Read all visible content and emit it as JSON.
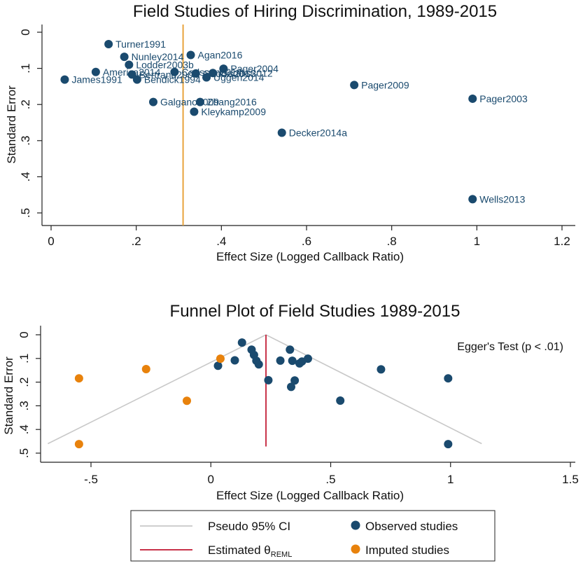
{
  "colors": {
    "observed": "#1a4a6e",
    "imputed": "#e8820c",
    "vline_top": "#e8a33c",
    "ci": "#c8c8c8",
    "estimate": "#c8334a",
    "axis": "#222222"
  },
  "chart_data": [
    {
      "type": "scatter",
      "title": "Field Studies of Hiring Discrimination, 1989-2015",
      "xlabel": "Effect Size (Logged Callback Ratio)",
      "ylabel": "Standard Error",
      "xlim": [
        0,
        1.2
      ],
      "ylim": [
        0,
        0.5
      ],
      "y_reversed": true,
      "xticks": [
        "0",
        ".2",
        ".4",
        ".6",
        ".8",
        "1",
        "1.2"
      ],
      "yticks": [
        "0",
        ".1",
        ".2",
        ".3",
        ".4",
        ".5"
      ],
      "vertical_line_x": 0.31,
      "points": [
        {
          "x": 0.135,
          "y": 0.033,
          "label": "Turner1991"
        },
        {
          "x": 0.172,
          "y": 0.068,
          "label": "Nunley2014"
        },
        {
          "x": 0.328,
          "y": 0.063,
          "label": "Agan2016"
        },
        {
          "x": 0.183,
          "y": 0.09,
          "label": "Lodder2003b"
        },
        {
          "x": 0.105,
          "y": 0.11,
          "label": "America2014"
        },
        {
          "x": 0.19,
          "y": 0.117,
          "label": "Bertrand2004"
        },
        {
          "x": 0.29,
          "y": 0.11,
          "label": "Carlsson2014"
        },
        {
          "x": 0.34,
          "y": 0.114,
          "label": "Gaddis2015"
        },
        {
          "x": 0.38,
          "y": 0.113,
          "label": "Gaddis2012"
        },
        {
          "x": 0.405,
          "y": 0.101,
          "label": "Pager2004"
        },
        {
          "x": 0.365,
          "y": 0.125,
          "label": "Uggen2014"
        },
        {
          "x": 0.032,
          "y": 0.131,
          "label": "James1991"
        },
        {
          "x": 0.202,
          "y": 0.131,
          "label": "Bendick1994"
        },
        {
          "x": 0.712,
          "y": 0.146,
          "label": "Pager2009"
        },
        {
          "x": 0.99,
          "y": 0.184,
          "label": "Pager2003"
        },
        {
          "x": 0.24,
          "y": 0.193,
          "label": "Galgano2009"
        },
        {
          "x": 0.35,
          "y": 0.193,
          "label": "Zhang2016"
        },
        {
          "x": 0.336,
          "y": 0.22,
          "label": "Kleykamp2009"
        },
        {
          "x": 0.542,
          "y": 0.278,
          "label": "Decker2014a"
        },
        {
          "x": 0.99,
          "y": 0.462,
          "label": "Wells2013"
        }
      ]
    },
    {
      "type": "scatter",
      "title": "Funnel Plot of Field Studies 1989-2015",
      "xlabel": "Effect Size (Logged Callback Ratio)",
      "ylabel": "Standard Error",
      "xlim": [
        -0.6,
        1.5
      ],
      "ylim": [
        0,
        0.5
      ],
      "y_reversed": true,
      "xticks": [
        "-.5",
        "0",
        ".5",
        "1",
        "1.5"
      ],
      "yticks": [
        "0",
        ".1",
        ".2",
        ".3",
        ".4",
        ".5"
      ],
      "annotation": "Egger's Test (p < .01)",
      "estimate_x": 0.23,
      "ci_apex": [
        0.23,
        0
      ],
      "ci_base_y": 0.46,
      "ci_base_left_x": -0.68,
      "ci_base_right_x": 1.13,
      "series": [
        {
          "name": "Observed studies",
          "points": [
            {
              "x": 0.13,
              "y": 0.033
            },
            {
              "x": 0.17,
              "y": 0.063
            },
            {
              "x": 0.18,
              "y": 0.085
            },
            {
              "x": 0.19,
              "y": 0.11
            },
            {
              "x": 0.2,
              "y": 0.125
            },
            {
              "x": 0.1,
              "y": 0.108
            },
            {
              "x": 0.03,
              "y": 0.131
            },
            {
              "x": 0.33,
              "y": 0.063
            },
            {
              "x": 0.29,
              "y": 0.109
            },
            {
              "x": 0.34,
              "y": 0.11
            },
            {
              "x": 0.37,
              "y": 0.121
            },
            {
              "x": 0.38,
              "y": 0.113
            },
            {
              "x": 0.405,
              "y": 0.101
            },
            {
              "x": 0.24,
              "y": 0.192
            },
            {
              "x": 0.35,
              "y": 0.193
            },
            {
              "x": 0.335,
              "y": 0.22
            },
            {
              "x": 0.54,
              "y": 0.278
            },
            {
              "x": 0.71,
              "y": 0.146
            },
            {
              "x": 0.99,
              "y": 0.184
            },
            {
              "x": 0.99,
              "y": 0.462
            }
          ]
        },
        {
          "name": "Imputed studies",
          "points": [
            {
              "x": 0.04,
              "y": 0.101
            },
            {
              "x": -0.27,
              "y": 0.145
            },
            {
              "x": -0.55,
              "y": 0.184
            },
            {
              "x": -0.1,
              "y": 0.279
            },
            {
              "x": -0.55,
              "y": 0.462
            }
          ]
        }
      ]
    }
  ],
  "legend": {
    "ci_label": "Pseudo 95% CI",
    "estimate_label_prefix": "Estimated θ",
    "estimate_label_sub": "REML",
    "observed_label": "Observed studies",
    "imputed_label": "Imputed studies"
  }
}
